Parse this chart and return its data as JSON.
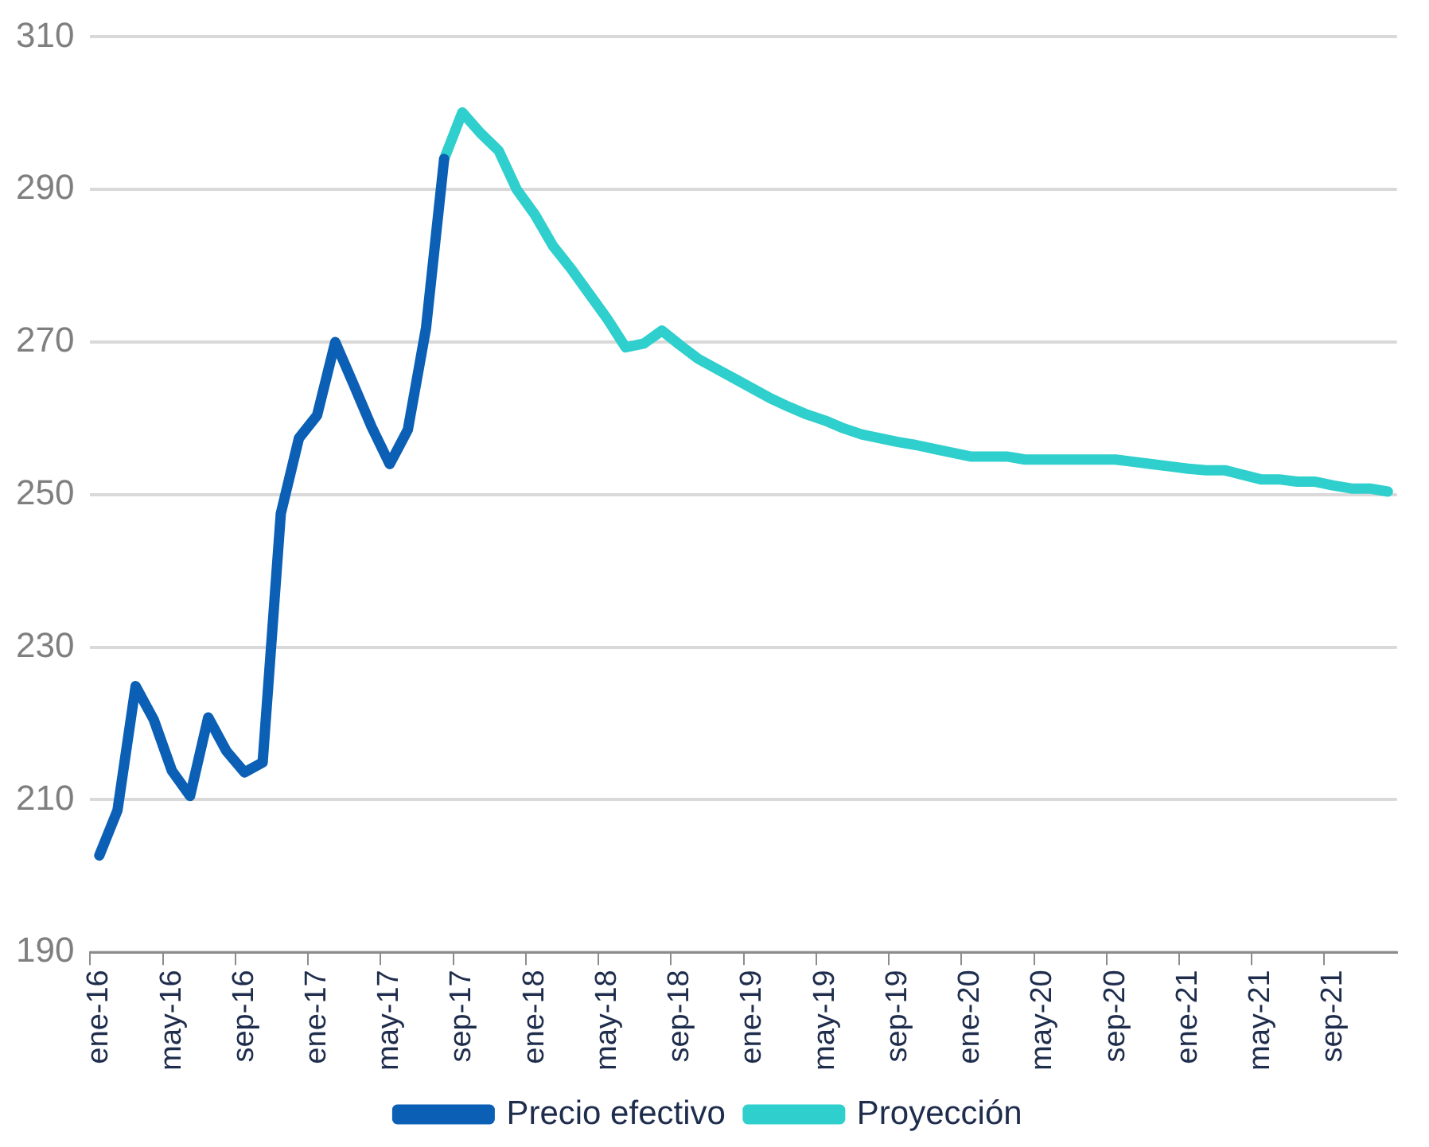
{
  "chart_data": {
    "type": "line",
    "categories": [
      "ene-16",
      null,
      null,
      null,
      "may-16",
      null,
      null,
      null,
      "sep-16",
      null,
      null,
      null,
      "ene-17",
      null,
      null,
      null,
      "may-17",
      null,
      null,
      null,
      "sep-17",
      null,
      null,
      null,
      "ene-18",
      null,
      null,
      null,
      "may-18",
      null,
      null,
      null,
      "sep-18",
      null,
      null,
      null,
      "ene-19",
      null,
      null,
      null,
      "may-19",
      null,
      null,
      null,
      "sep-19",
      null,
      null,
      null,
      "ene-20",
      null,
      null,
      null,
      "may-20",
      null,
      null,
      null,
      "sep-20",
      null,
      null,
      null,
      "ene-21",
      null,
      null,
      null,
      "may-21",
      null,
      null,
      null,
      "sep-21",
      null,
      null,
      null
    ],
    "series": [
      {
        "name": "Precio efectivo",
        "color": "#0b5fb5",
        "values": [
          202.7,
          208.6,
          224.9,
          220.5,
          213.8,
          210.5,
          220.8,
          216.4,
          213.6,
          214.9,
          247.5,
          257.4,
          260.4,
          270.0,
          264.5,
          258.9,
          254.0,
          258.5,
          271.8,
          294.0,
          null,
          null,
          null,
          null,
          null,
          null,
          null,
          null,
          null,
          null,
          null,
          null,
          null,
          null,
          null,
          null,
          null,
          null,
          null,
          null,
          null,
          null,
          null,
          null,
          null,
          null,
          null,
          null,
          null,
          null,
          null,
          null,
          null,
          null,
          null,
          null,
          null,
          null,
          null,
          null,
          null,
          null,
          null,
          null,
          null,
          null,
          null,
          null,
          null,
          null,
          null,
          null
        ]
      },
      {
        "name": "Proyección",
        "color": "#2ecfcc",
        "values": [
          null,
          null,
          null,
          null,
          null,
          null,
          null,
          null,
          null,
          null,
          null,
          null,
          null,
          null,
          null,
          null,
          null,
          null,
          null,
          294.0,
          300.1,
          297.4,
          295.1,
          290.0,
          286.7,
          282.6,
          279.6,
          276.3,
          273.0,
          269.3,
          269.8,
          271.5,
          269.6,
          267.8,
          266.5,
          265.2,
          263.9,
          262.6,
          261.5,
          260.5,
          259.7,
          258.7,
          257.9,
          257.4,
          256.9,
          256.5,
          256.0,
          255.5,
          255.0,
          255.0,
          255.0,
          254.6,
          254.6,
          254.6,
          254.6,
          254.6,
          254.6,
          254.3,
          254.0,
          253.7,
          253.4,
          253.2,
          253.2,
          252.6,
          252.0,
          252.0,
          251.7,
          251.7,
          251.2,
          250.8,
          250.8,
          250.4
        ]
      }
    ],
    "ylim": [
      190,
      310
    ],
    "yticks": [
      190,
      210,
      230,
      250,
      270,
      290,
      310
    ],
    "grid": "y",
    "legend": "bottom",
    "marker": "none",
    "line_style": "solid"
  }
}
